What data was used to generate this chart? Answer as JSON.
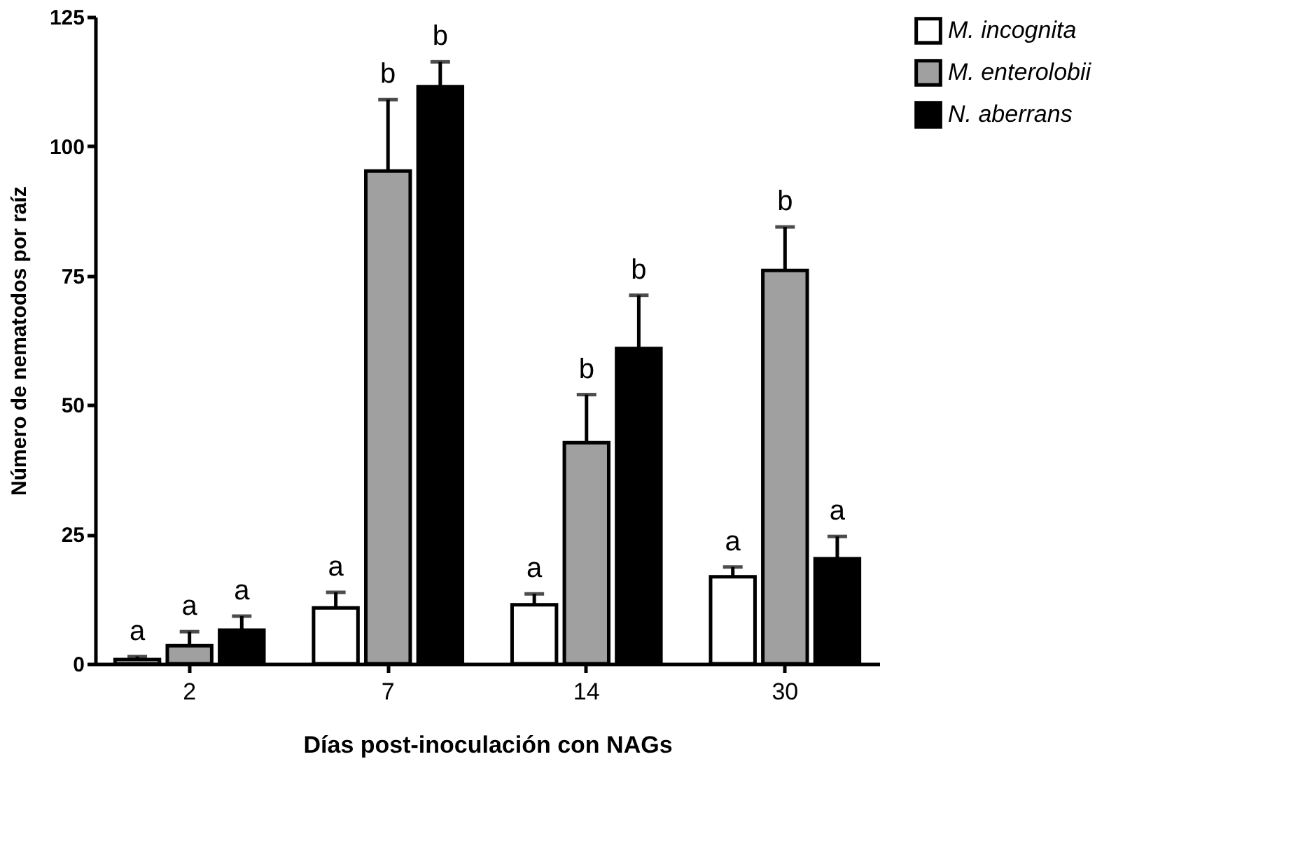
{
  "chart_data": {
    "type": "bar",
    "xlabel": "Días post-inoculación con NAGs",
    "ylabel": "Número de nematodos por raíz",
    "categories": [
      "2",
      "7",
      "14",
      "30"
    ],
    "series": [
      {
        "name": "M. incognita",
        "color": "#ffffff",
        "values": [
          0.8,
          10.8,
          11.4,
          16.8
        ],
        "errors": [
          0.6,
          3,
          2.1,
          1.9
        ],
        "value_labels": [
          "a",
          "a",
          "a",
          "a"
        ]
      },
      {
        "name": "M. enterolobii",
        "color": "#a0a0a0",
        "values": [
          3.5,
          95.2,
          42.7,
          76
        ],
        "errors": [
          2.7,
          13.8,
          9.3,
          8.4
        ],
        "value_labels": [
          "a",
          "b",
          "b",
          "b"
        ]
      },
      {
        "name": "N. aberrans",
        "color": "#000000",
        "values": [
          6.5,
          111.5,
          60.9,
          20.3
        ],
        "errors": [
          2.7,
          4.8,
          10.3,
          4.3
        ],
        "value_labels": [
          "a",
          "b",
          "b",
          "a"
        ]
      }
    ],
    "ylim": [
      0,
      125
    ],
    "yticks": [
      0,
      25,
      50,
      75,
      100,
      125
    ],
    "grid": false,
    "legend": "top right"
  }
}
